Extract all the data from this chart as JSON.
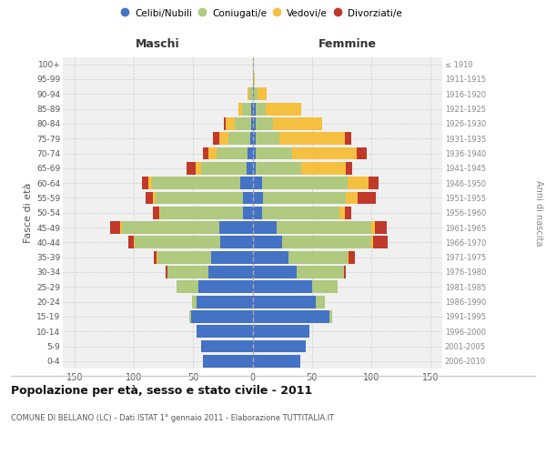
{
  "age_groups": [
    "0-4",
    "5-9",
    "10-14",
    "15-19",
    "20-24",
    "25-29",
    "30-34",
    "35-39",
    "40-44",
    "45-49",
    "50-54",
    "55-59",
    "60-64",
    "65-69",
    "70-74",
    "75-79",
    "80-84",
    "85-89",
    "90-94",
    "95-99",
    "100+"
  ],
  "birth_years": [
    "2006-2010",
    "2001-2005",
    "1996-2000",
    "1991-1995",
    "1986-1990",
    "1981-1985",
    "1976-1980",
    "1971-1975",
    "1966-1970",
    "1961-1965",
    "1956-1960",
    "1951-1955",
    "1946-1950",
    "1941-1945",
    "1936-1940",
    "1931-1935",
    "1926-1930",
    "1921-1925",
    "1916-1920",
    "1911-1915",
    "≤ 1910"
  ],
  "male": {
    "celibi": [
      42,
      43,
      47,
      52,
      47,
      46,
      37,
      35,
      27,
      28,
      8,
      8,
      10,
      5,
      4,
      2,
      1,
      1,
      0,
      0,
      0
    ],
    "coniugati": [
      0,
      0,
      0,
      1,
      4,
      18,
      35,
      45,
      72,
      82,
      70,
      74,
      75,
      38,
      26,
      18,
      14,
      8,
      3,
      0,
      0
    ],
    "vedovi": [
      0,
      0,
      0,
      0,
      0,
      0,
      0,
      1,
      1,
      2,
      1,
      2,
      3,
      5,
      7,
      8,
      8,
      3,
      1,
      0,
      0
    ],
    "divorziati": [
      0,
      0,
      0,
      0,
      0,
      0,
      1,
      2,
      5,
      8,
      5,
      6,
      5,
      8,
      5,
      5,
      1,
      0,
      0,
      0,
      0
    ]
  },
  "female": {
    "nubili": [
      40,
      45,
      48,
      65,
      53,
      50,
      37,
      30,
      25,
      20,
      8,
      9,
      8,
      3,
      3,
      3,
      3,
      3,
      1,
      0,
      0
    ],
    "coniugate": [
      0,
      0,
      0,
      2,
      8,
      22,
      40,
      50,
      75,
      80,
      65,
      70,
      72,
      38,
      30,
      20,
      14,
      8,
      3,
      1,
      0
    ],
    "vedove": [
      0,
      0,
      0,
      0,
      0,
      0,
      0,
      1,
      2,
      3,
      5,
      10,
      18,
      38,
      55,
      55,
      42,
      30,
      8,
      1,
      1
    ],
    "divorziate": [
      0,
      0,
      0,
      0,
      0,
      0,
      2,
      5,
      12,
      10,
      5,
      15,
      8,
      5,
      8,
      5,
      0,
      0,
      0,
      0,
      0
    ]
  },
  "colors": {
    "celibi": "#4472c4",
    "coniugati": "#afc97e",
    "vedovi": "#f5c040",
    "divorziati": "#c0392b"
  },
  "title": "Popolazione per età, sesso e stato civile - 2011",
  "subtitle": "COMUNE DI BELLANO (LC) - Dati ISTAT 1° gennaio 2011 - Elaborazione TUTTITALIA.IT",
  "xlabel_left": "Maschi",
  "xlabel_right": "Femmine",
  "ylabel_left": "Fasce di età",
  "ylabel_right": "Anni di nascita",
  "xlim": 160,
  "legend_labels": [
    "Celibi/Nubili",
    "Coniugati/e",
    "Vedovi/e",
    "Divorziati/e"
  ],
  "background_color": "#ffffff",
  "plot_bg_color": "#f0f0f0",
  "grid_color": "#d0d0d0"
}
